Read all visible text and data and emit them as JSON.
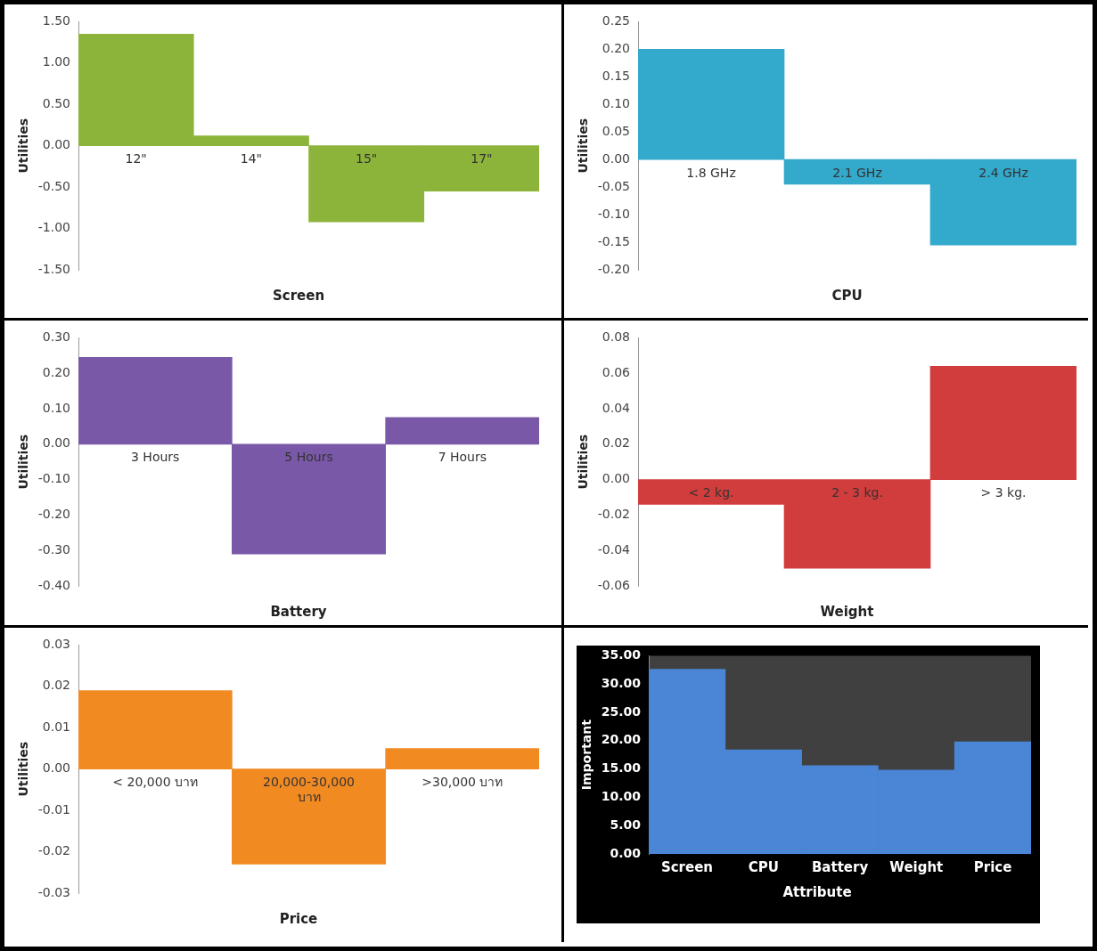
{
  "chart_data": [
    {
      "type": "bar",
      "xlabel": "Screen",
      "ylabel": "Utilities",
      "categories": [
        "12\"",
        "14\"",
        "15\"",
        "17\""
      ],
      "values": [
        1.35,
        0.12,
        -0.92,
        -0.55
      ],
      "color": "#8db43a",
      "ylim": [
        -1.5,
        1.5
      ],
      "yticks": [
        {
          "value": -1.5,
          "label": "-1.50"
        },
        {
          "value": -1,
          "label": "-1.00"
        },
        {
          "value": -0.5,
          "label": "-0.50"
        },
        {
          "value": 0,
          "label": "0.00"
        },
        {
          "value": 0.5,
          "label": "0.50"
        },
        {
          "value": 1,
          "label": "1.00"
        },
        {
          "value": 1.5,
          "label": "1.50"
        }
      ],
      "grid": false,
      "legend": false
    },
    {
      "type": "bar",
      "xlabel": "CPU",
      "ylabel": "Utilities",
      "categories": [
        "1.8 GHz",
        "2.1 GHz",
        "2.4 GHz"
      ],
      "values": [
        0.2,
        -0.045,
        -0.155
      ],
      "color": "#33a9cc",
      "ylim": [
        -0.2,
        0.25
      ],
      "yticks": [
        {
          "value": -0.2,
          "label": "-0.20"
        },
        {
          "value": -0.15,
          "label": "-0.15"
        },
        {
          "value": -0.1,
          "label": "-0.10"
        },
        {
          "value": -0.05,
          "label": "-0.05"
        },
        {
          "value": 0,
          "label": "0.00"
        },
        {
          "value": 0.05,
          "label": "0.05"
        },
        {
          "value": 0.1,
          "label": "0.10"
        },
        {
          "value": 0.15,
          "label": "0.15"
        },
        {
          "value": 0.2,
          "label": "0.20"
        },
        {
          "value": 0.25,
          "label": "0.25"
        }
      ],
      "grid": false,
      "legend": false
    },
    {
      "type": "bar",
      "xlabel": "Battery",
      "ylabel": "Utilities",
      "categories": [
        "3 Hours",
        "5 Hours",
        "7 Hours"
      ],
      "values": [
        0.245,
        -0.31,
        0.075
      ],
      "color": "#7a58a8",
      "ylim": [
        -0.4,
        0.3
      ],
      "yticks": [
        {
          "value": -0.4,
          "label": "-0.40"
        },
        {
          "value": -0.3,
          "label": "-0.30"
        },
        {
          "value": -0.2,
          "label": "-0.20"
        },
        {
          "value": -0.1,
          "label": "-0.10"
        },
        {
          "value": 0,
          "label": "0.00"
        },
        {
          "value": 0.1,
          "label": "0.10"
        },
        {
          "value": 0.2,
          "label": "0.20"
        },
        {
          "value": 0.3,
          "label": "0.30"
        }
      ],
      "grid": false,
      "legend": false
    },
    {
      "type": "bar",
      "xlabel": "Weight",
      "ylabel": "Utilities",
      "categories": [
        "< 2 kg.",
        "2 - 3 kg.",
        "> 3 kg."
      ],
      "values": [
        -0.014,
        -0.05,
        0.064
      ],
      "color": "#d13c3c",
      "ylim": [
        -0.06,
        0.08
      ],
      "yticks": [
        {
          "value": -0.06,
          "label": "-0.06"
        },
        {
          "value": -0.04,
          "label": "-0.04"
        },
        {
          "value": -0.02,
          "label": "-0.02"
        },
        {
          "value": 0,
          "label": "0.00"
        },
        {
          "value": 0.02,
          "label": "0.02"
        },
        {
          "value": 0.04,
          "label": "0.04"
        },
        {
          "value": 0.06,
          "label": "0.06"
        },
        {
          "value": 0.08,
          "label": "0.08"
        }
      ],
      "grid": false,
      "legend": false
    },
    {
      "type": "bar",
      "xlabel": "Price",
      "ylabel": "Utilities",
      "categories": [
        "< 20,000 บาท",
        "20,000-30,000 บาท",
        ">30,000 บาท"
      ],
      "values": [
        0.019,
        -0.023,
        0.005
      ],
      "color": "#f28a22",
      "ylim": [
        -0.03,
        0.03
      ],
      "yticks": [
        {
          "value": -0.03,
          "label": "-0.03"
        },
        {
          "value": -0.02,
          "label": "-0.02"
        },
        {
          "value": -0.01,
          "label": "-0.01"
        },
        {
          "value": 0,
          "label": "0.00"
        },
        {
          "value": 0.01,
          "label": "0.01"
        },
        {
          "value": 0.02,
          "label": "0.02"
        },
        {
          "value": 0.03,
          "label": "0.03"
        }
      ],
      "grid": false,
      "legend": false
    },
    {
      "type": "bar",
      "xlabel": "Attribute",
      "ylabel": "Important",
      "categories": [
        "Screen",
        "CPU",
        "Battery",
        "Weight",
        "Price"
      ],
      "values": [
        32.6,
        18.4,
        15.6,
        14.8,
        19.8
      ],
      "color": "#4a85d6",
      "ylim": [
        0,
        35
      ],
      "yticks": [
        {
          "value": 0,
          "label": "0.00"
        },
        {
          "value": 5,
          "label": "5.00"
        },
        {
          "value": 10,
          "label": "10.00"
        },
        {
          "value": 15,
          "label": "15.00"
        },
        {
          "value": 20,
          "label": "20.00"
        },
        {
          "value": 25,
          "label": "25.00"
        },
        {
          "value": 30,
          "label": "30.00"
        },
        {
          "value": 35,
          "label": "35.00"
        }
      ],
      "grid": false,
      "legend": false
    }
  ]
}
